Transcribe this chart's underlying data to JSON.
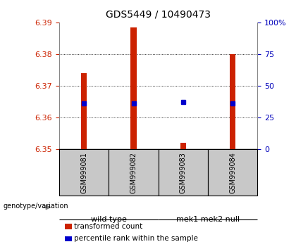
{
  "title": "GDS5449 / 10490473",
  "samples": [
    "GSM999081",
    "GSM999082",
    "GSM999083",
    "GSM999084"
  ],
  "groups": [
    {
      "label": "wild type",
      "indices": [
        0,
        1
      ],
      "color": "#90EE90"
    },
    {
      "label": "mek1 mek2 null",
      "indices": [
        2,
        3
      ],
      "color": "#33CC33"
    }
  ],
  "transformed_counts": [
    6.374,
    6.3885,
    6.352,
    6.38
  ],
  "percentile_ranks": [
    36.5,
    36.0,
    37.5,
    36.5
  ],
  "ylim_left": [
    6.35,
    6.39
  ],
  "ylim_right": [
    0,
    100
  ],
  "yticks_left": [
    6.35,
    6.36,
    6.37,
    6.38,
    6.39
  ],
  "yticks_right": [
    0,
    25,
    50,
    75,
    100
  ],
  "bar_color": "#CC2200",
  "square_color": "#0000CC",
  "bar_width": 0.12,
  "background_color": "#FFFFFF",
  "plot_bg": "#FFFFFF",
  "left_tick_color": "#CC2200",
  "right_tick_color": "#0000BB",
  "legend_red_label": "transformed count",
  "legend_blue_label": "percentile rank within the sample",
  "genotype_label": "genotype/variation",
  "sample_bg": "#C8C8C8"
}
